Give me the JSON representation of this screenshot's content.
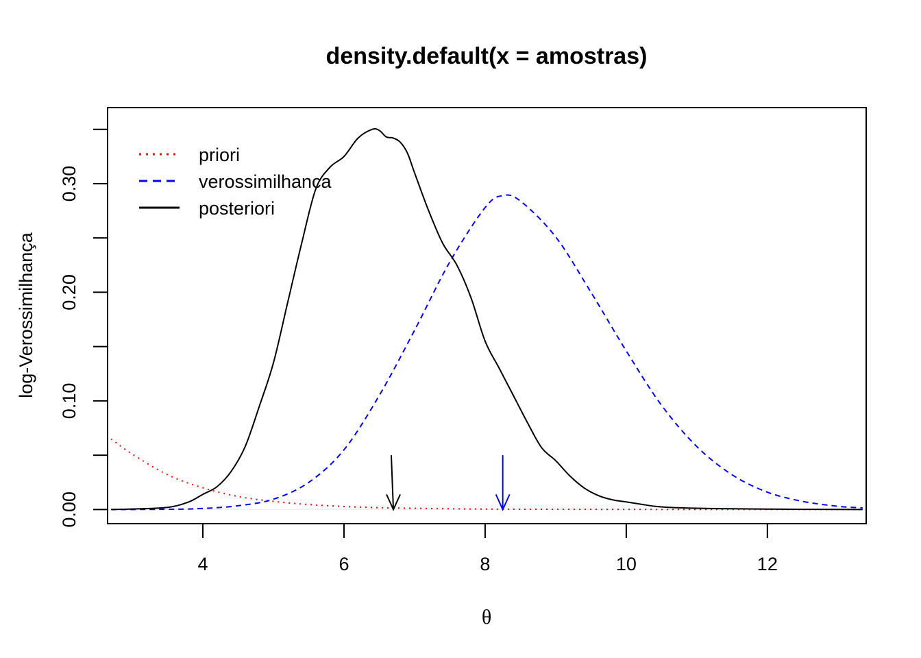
{
  "chart_data": {
    "type": "line",
    "title": "density.default(x = amostras)",
    "xlabel": "θ",
    "ylabel": "log-Verossimilhança",
    "xlim": [
      2.65,
      13.4
    ],
    "ylim": [
      -0.013,
      0.37
    ],
    "x_ticks": [
      4,
      6,
      8,
      10,
      12
    ],
    "x_tick_labels": [
      "4",
      "6",
      "8",
      "10",
      "12"
    ],
    "y_ticks": [
      0.0,
      0.05,
      0.1,
      0.15,
      0.2,
      0.25,
      0.3,
      0.35
    ],
    "y_tick_labels": [
      "0.00",
      "",
      "0.10",
      "",
      "0.20",
      "",
      "0.30",
      ""
    ],
    "grid": false,
    "legend": {
      "position": "top-left",
      "entries": [
        {
          "label": "priori",
          "color": "#ff0000",
          "style": "dotted"
        },
        {
          "label": "verossimilhanca",
          "color": "#0000ff",
          "style": "dashed"
        },
        {
          "label": "posteriori",
          "color": "#000000",
          "style": "solid"
        }
      ]
    },
    "series": [
      {
        "name": "priori",
        "color": "#ff0000",
        "style": "dotted",
        "x": [
          2.7,
          3.0,
          3.5,
          4.0,
          4.5,
          5.0,
          5.5,
          6.0,
          6.5,
          7.0,
          7.5,
          8.0,
          9.0,
          10.0,
          11.0,
          12.0,
          13.35
        ],
        "values": [
          0.065,
          0.051,
          0.032,
          0.02,
          0.012,
          0.0075,
          0.0046,
          0.0028,
          0.0017,
          0.0011,
          0.0007,
          0.0004,
          0.0002,
          0.0001,
          0.0,
          0.0,
          0.0
        ]
      },
      {
        "name": "verossimilhanca",
        "color": "#0000ff",
        "style": "dashed",
        "x": [
          2.7,
          3.5,
          4.0,
          4.5,
          5.0,
          5.5,
          6.0,
          6.5,
          7.0,
          7.5,
          8.0,
          8.25,
          8.5,
          9.0,
          9.5,
          10.0,
          10.5,
          11.0,
          11.5,
          12.0,
          12.5,
          13.0,
          13.35
        ],
        "values": [
          0.0,
          0.0002,
          0.001,
          0.0035,
          0.0095,
          0.025,
          0.055,
          0.105,
          0.165,
          0.228,
          0.278,
          0.289,
          0.284,
          0.251,
          0.2,
          0.146,
          0.096,
          0.058,
          0.032,
          0.016,
          0.0075,
          0.003,
          0.0015
        ]
      },
      {
        "name": "posteriori",
        "color": "#000000",
        "style": "solid",
        "x": [
          2.7,
          3.0,
          3.5,
          3.8,
          4.0,
          4.2,
          4.4,
          4.6,
          4.8,
          5.0,
          5.2,
          5.4,
          5.6,
          5.8,
          6.0,
          6.2,
          6.4,
          6.5,
          6.6,
          6.7,
          6.8,
          6.9,
          7.0,
          7.2,
          7.4,
          7.6,
          7.8,
          8.0,
          8.2,
          8.4,
          8.6,
          8.8,
          9.0,
          9.2,
          9.4,
          9.6,
          9.8,
          10.0,
          10.2,
          10.4,
          10.6,
          11.0,
          11.5,
          12.0,
          12.5,
          13.0,
          13.35
        ],
        "values": [
          0.0,
          0.0005,
          0.002,
          0.007,
          0.014,
          0.021,
          0.035,
          0.058,
          0.095,
          0.135,
          0.19,
          0.245,
          0.295,
          0.315,
          0.325,
          0.342,
          0.35,
          0.349,
          0.343,
          0.342,
          0.338,
          0.328,
          0.31,
          0.275,
          0.245,
          0.225,
          0.195,
          0.155,
          0.13,
          0.105,
          0.08,
          0.057,
          0.045,
          0.031,
          0.02,
          0.013,
          0.009,
          0.007,
          0.005,
          0.003,
          0.002,
          0.0012,
          0.0007,
          0.0004,
          0.0002,
          0.0001,
          0.0
        ]
      }
    ],
    "annotations": [
      {
        "type": "arrow",
        "color": "#000000",
        "x_from": 6.67,
        "x_to": 6.7,
        "y_from": 0.05,
        "y_to": 0.0
      },
      {
        "type": "arrow",
        "color": "#0000ff",
        "x_from": 8.25,
        "x_to": 8.25,
        "y_from": 0.05,
        "y_to": 0.0
      }
    ],
    "hline": {
      "y": 0.0,
      "color": "#eeeeee"
    }
  }
}
